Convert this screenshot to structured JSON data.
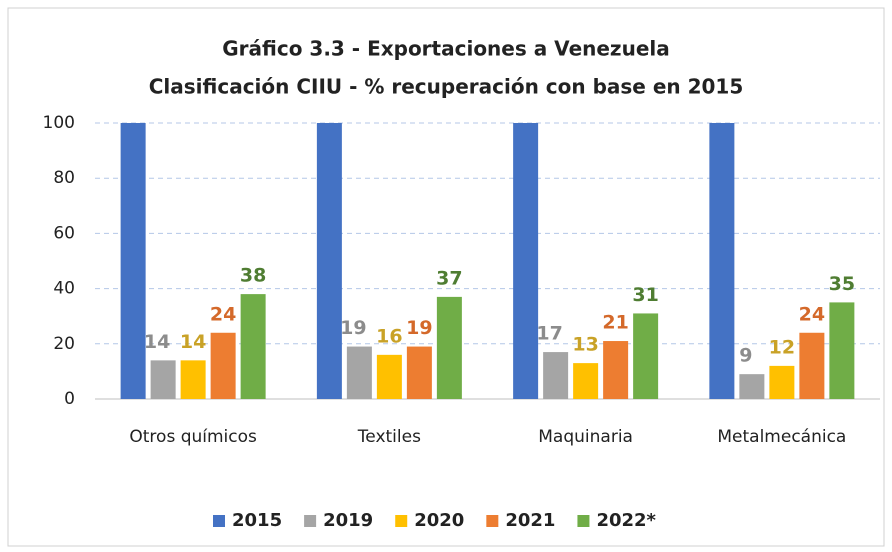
{
  "chart_data": {
    "type": "bar",
    "title": "Gráfico 3.3 - Exportaciones a Venezuela",
    "subtitle": "Clasificación CIIU - % recuperación con base en 2015",
    "categories": [
      "Otros químicos",
      "Textiles",
      "Maquinaria",
      "Metalmecánica"
    ],
    "series": [
      {
        "name": "2015",
        "color": "#4472c4",
        "labels": false,
        "values": [
          100,
          100,
          100,
          100
        ]
      },
      {
        "name": "2019",
        "color": "#a5a5a5",
        "label_color": "#8c8c8c",
        "labels": true,
        "values": [
          14,
          19,
          17,
          9
        ]
      },
      {
        "name": "2020",
        "color": "#ffc000",
        "label_color": "#c9a227",
        "labels": true,
        "values": [
          14,
          16,
          13,
          12
        ]
      },
      {
        "name": "2021",
        "color": "#ed7d31",
        "label_color": "#d4692a",
        "labels": true,
        "values": [
          24,
          19,
          21,
          24
        ]
      },
      {
        "name": "2022*",
        "color": "#70ad47",
        "label_color": "#4f7d32",
        "labels": true,
        "values": [
          38,
          37,
          31,
          35
        ]
      }
    ],
    "ylim": [
      0,
      100
    ],
    "yticks": [
      0,
      20,
      40,
      60,
      80,
      100
    ],
    "grid": true,
    "legend": "bottom"
  }
}
